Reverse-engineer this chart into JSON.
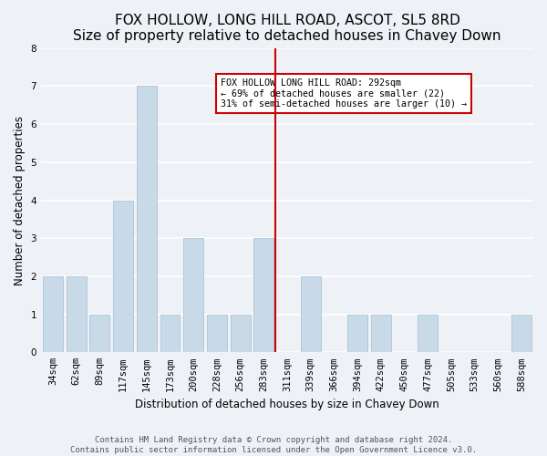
{
  "title": "FOX HOLLOW, LONG HILL ROAD, ASCOT, SL5 8RD",
  "subtitle": "Size of property relative to detached houses in Chavey Down",
  "xlabel": "Distribution of detached houses by size in Chavey Down",
  "ylabel": "Number of detached properties",
  "bar_labels": [
    "34sqm",
    "62sqm",
    "89sqm",
    "117sqm",
    "145sqm",
    "173sqm",
    "200sqm",
    "228sqm",
    "256sqm",
    "283sqm",
    "311sqm",
    "339sqm",
    "366sqm",
    "394sqm",
    "422sqm",
    "450sqm",
    "477sqm",
    "505sqm",
    "533sqm",
    "560sqm",
    "588sqm"
  ],
  "bar_values": [
    2,
    2,
    1,
    4,
    7,
    1,
    3,
    1,
    1,
    3,
    0,
    2,
    0,
    1,
    1,
    0,
    1,
    0,
    0,
    0,
    1
  ],
  "bar_color": "#c8d9e8",
  "bar_edge_color": "#adc4d8",
  "reference_line_x": 9.5,
  "reference_line_color": "#cc0000",
  "ylim": [
    0,
    8
  ],
  "yticks": [
    0,
    1,
    2,
    3,
    4,
    5,
    6,
    7,
    8
  ],
  "annotation_text": "FOX HOLLOW LONG HILL ROAD: 292sqm\n← 69% of detached houses are smaller (22)\n31% of semi-detached houses are larger (10) →",
  "annotation_box_color": "#ffffff",
  "annotation_box_edge_color": "#cc0000",
  "footer_text": "Contains HM Land Registry data © Crown copyright and database right 2024.\nContains public sector information licensed under the Open Government Licence v3.0.",
  "bg_color": "#eef2f7",
  "grid_color": "#ffffff",
  "title_fontsize": 11,
  "axis_fontsize": 8.5,
  "tick_fontsize": 7.5,
  "footer_fontsize": 6.5
}
